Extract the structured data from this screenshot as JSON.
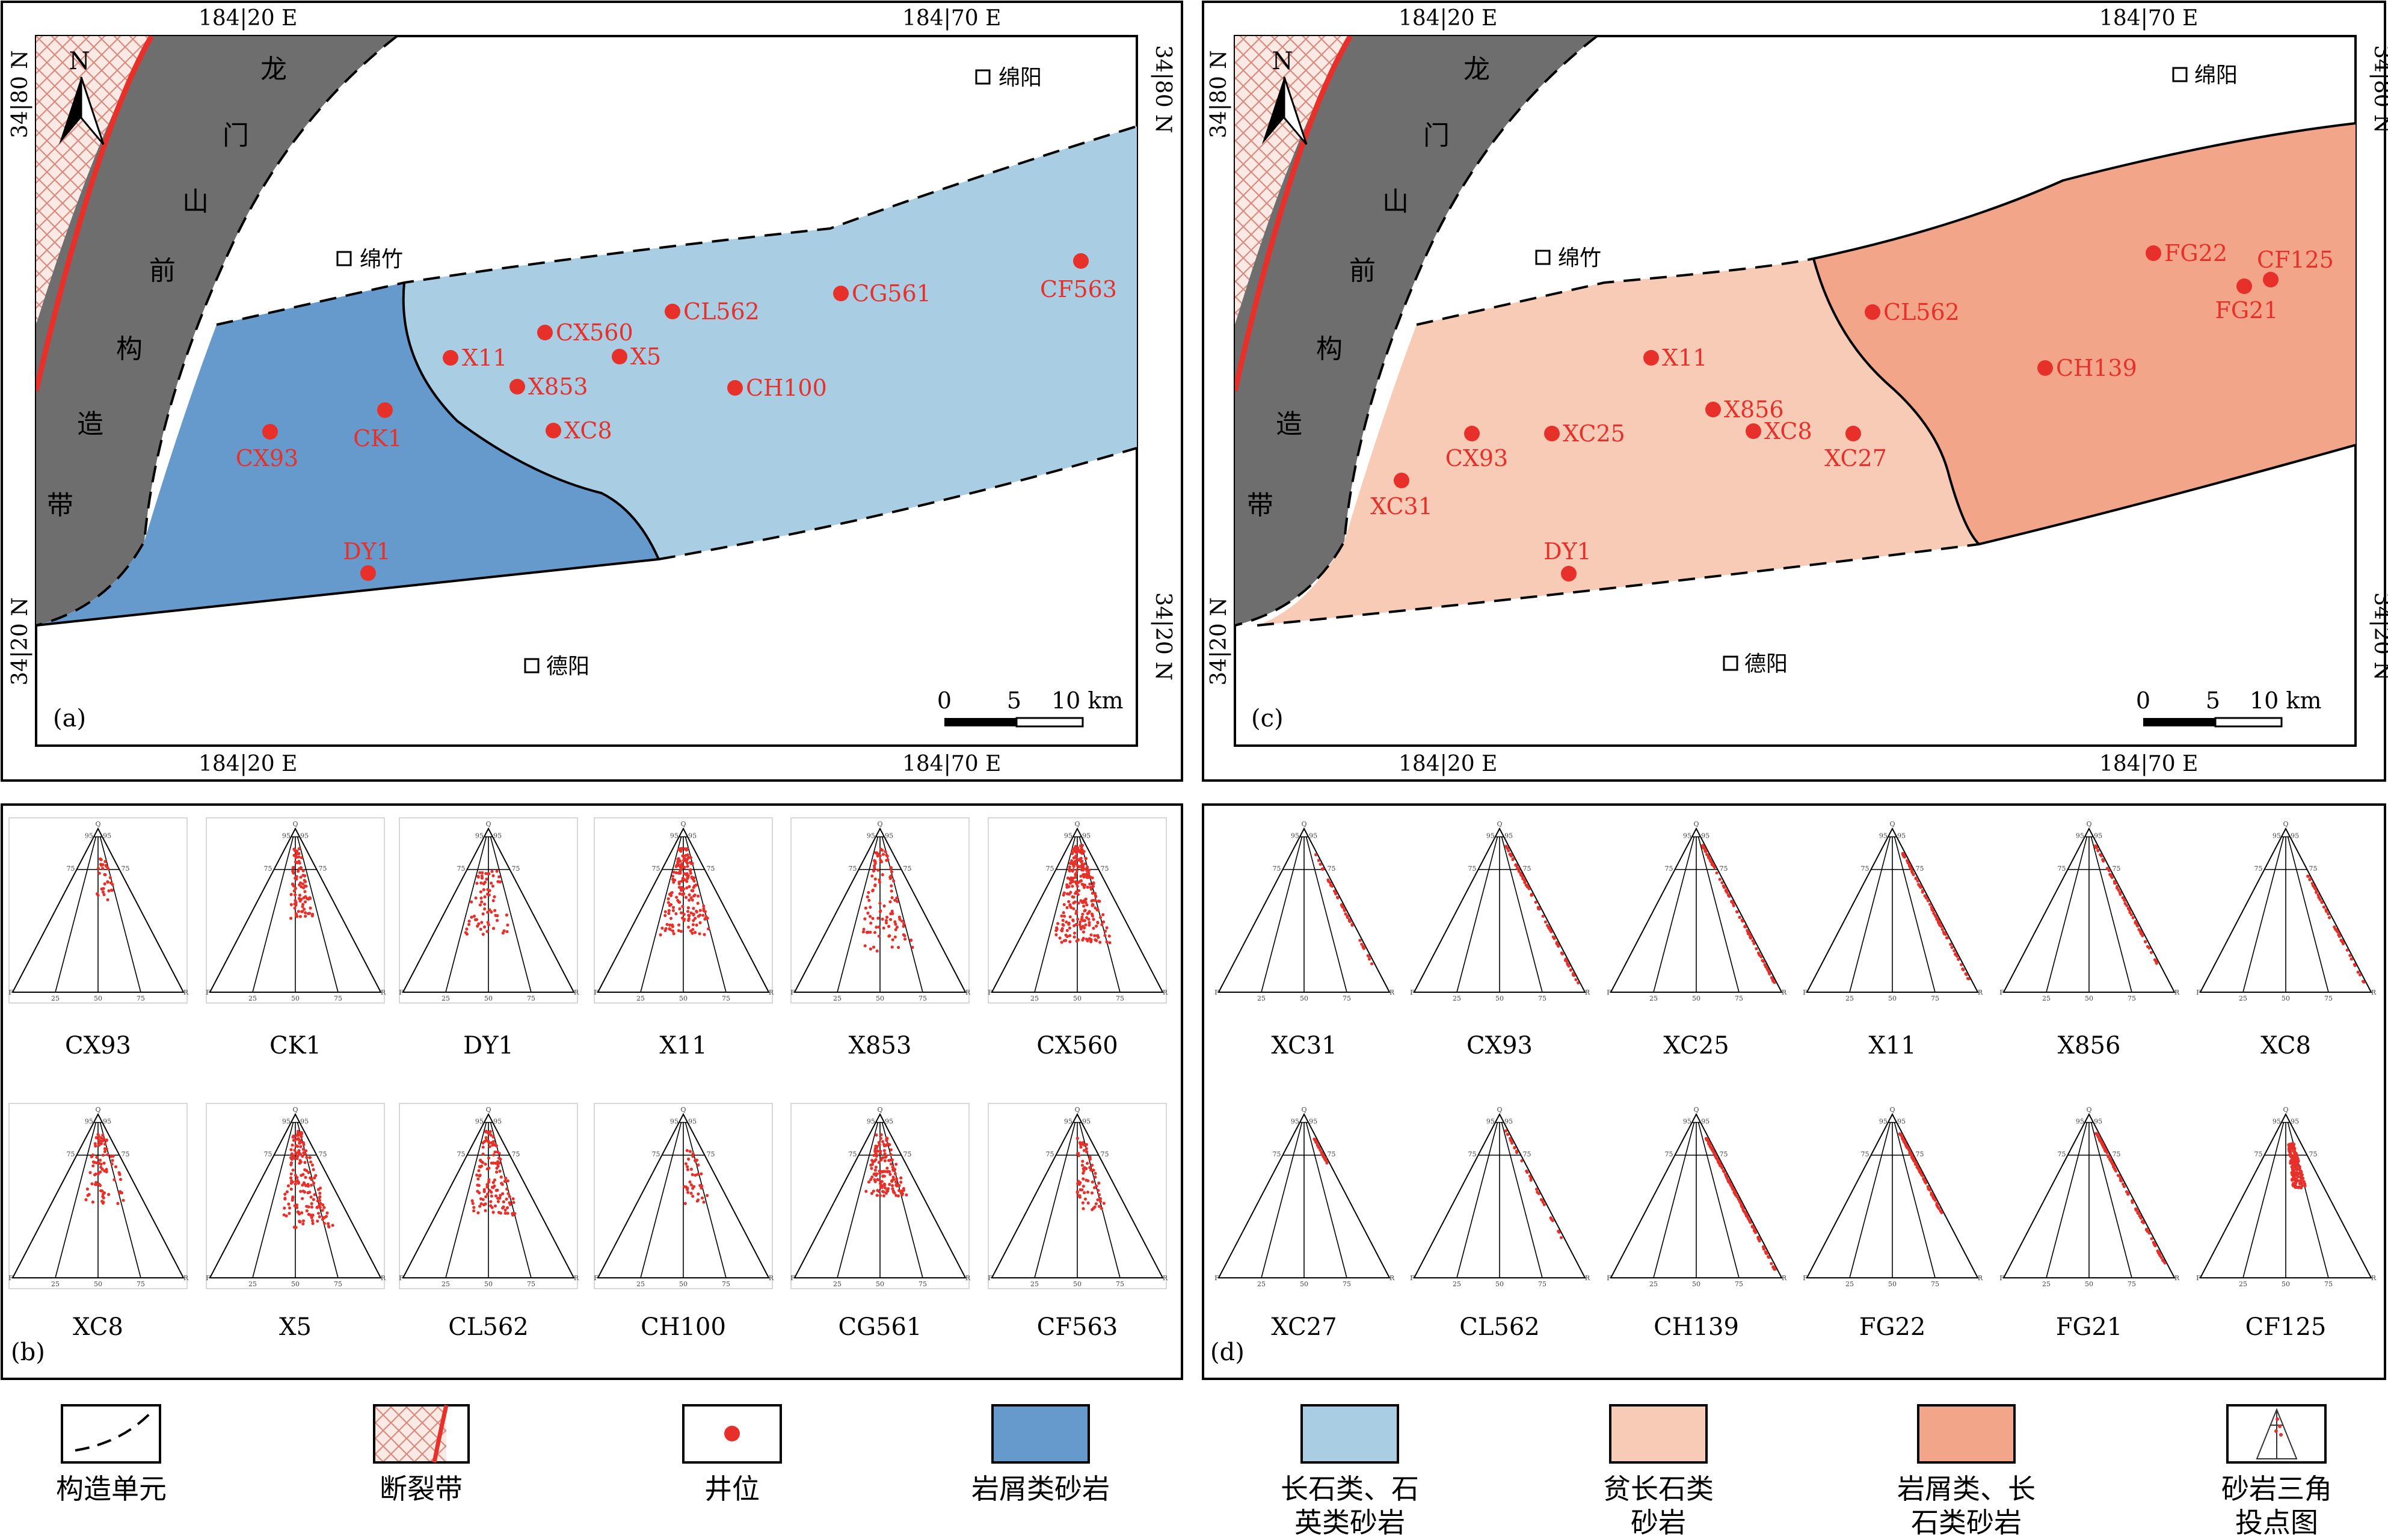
{
  "colors": {
    "lithic": "#6699cc",
    "feldspar_quartz": "#a9cde3",
    "feldspar_poor": "#f8cbb6",
    "lithic_feldspar": "#f3a589",
    "thrust_belt": "#6e6e6e",
    "fault": "#e8302a",
    "well": "#e8302a"
  },
  "map_a": {
    "panel_label": "(a)",
    "lon_left": "184|20 E",
    "lon_right": "184|70 E",
    "lat_top": "34|80 N",
    "lat_bottom": "34|20 N",
    "north": "N",
    "thrust_chars": [
      "龙",
      "门",
      "山",
      "前",
      "构",
      "造",
      "带"
    ],
    "cities": [
      "绵阳",
      "绵竹",
      "德阳"
    ],
    "scale": {
      "zero": "0",
      "mid": "5",
      "end": "10 km"
    },
    "wells": [
      {
        "id": "CX93"
      },
      {
        "id": "CK1"
      },
      {
        "id": "DY1"
      },
      {
        "id": "X11"
      },
      {
        "id": "X853"
      },
      {
        "id": "CX560"
      },
      {
        "id": "X5"
      },
      {
        "id": "XC8"
      },
      {
        "id": "CL562"
      },
      {
        "id": "CH100"
      },
      {
        "id": "CG561"
      },
      {
        "id": "CF563"
      }
    ]
  },
  "map_c": {
    "panel_label": "(c)",
    "lon_left": "184|20 E",
    "lon_right": "184|70 E",
    "lat_top": "34|80 N",
    "lat_bottom": "34|20 N",
    "north": "N",
    "thrust_chars": [
      "龙",
      "门",
      "山",
      "前",
      "构",
      "造",
      "带"
    ],
    "cities": [
      "绵阳",
      "绵竹",
      "德阳"
    ],
    "scale": {
      "zero": "0",
      "mid": "5",
      "end": "10 km"
    },
    "wells": [
      {
        "id": "XC31"
      },
      {
        "id": "CX93"
      },
      {
        "id": "XC25"
      },
      {
        "id": "DY1"
      },
      {
        "id": "X11"
      },
      {
        "id": "X856"
      },
      {
        "id": "XC8"
      },
      {
        "id": "XC27"
      },
      {
        "id": "CL562"
      },
      {
        "id": "CH139"
      },
      {
        "id": "FG22"
      },
      {
        "id": "FG21"
      },
      {
        "id": "CF125"
      }
    ]
  },
  "triangle_ticks": {
    "apex": "Q",
    "left": "F",
    "right": "R",
    "t95": "95",
    "t75": "75",
    "t25": "25",
    "t50": "50"
  },
  "panel_b": {
    "panel_label": "(b)",
    "row1": [
      "CX93",
      "CK1",
      "DY1",
      "X11",
      "X853",
      "CX560"
    ],
    "row2": [
      "XC8",
      "X5",
      "CL562",
      "CH100",
      "CG561",
      "CF563"
    ]
  },
  "panel_d": {
    "panel_label": "(d)",
    "row1": [
      "XC31",
      "CX93",
      "XC25",
      "X11",
      "X856",
      "XC8"
    ],
    "row2": [
      "XC27",
      "CL562",
      "CH139",
      "FG22",
      "FG21",
      "CF125"
    ]
  },
  "legend": [
    {
      "key": "tectonic_unit",
      "label": "构造单元"
    },
    {
      "key": "fault_zone",
      "label": "断裂带"
    },
    {
      "key": "well",
      "label": "井位"
    },
    {
      "key": "lithic",
      "label": "岩屑类砂岩"
    },
    {
      "key": "feldspar_quartz",
      "label": "长石类、石\n英类砂岩"
    },
    {
      "key": "feldspar_poor",
      "label": "贫长石类\n砂岩"
    },
    {
      "key": "lithic_feldspar",
      "label": "岩屑类、长\n石类砂岩"
    },
    {
      "key": "ternary",
      "label": "砂岩三角\n投点图"
    }
  ]
}
